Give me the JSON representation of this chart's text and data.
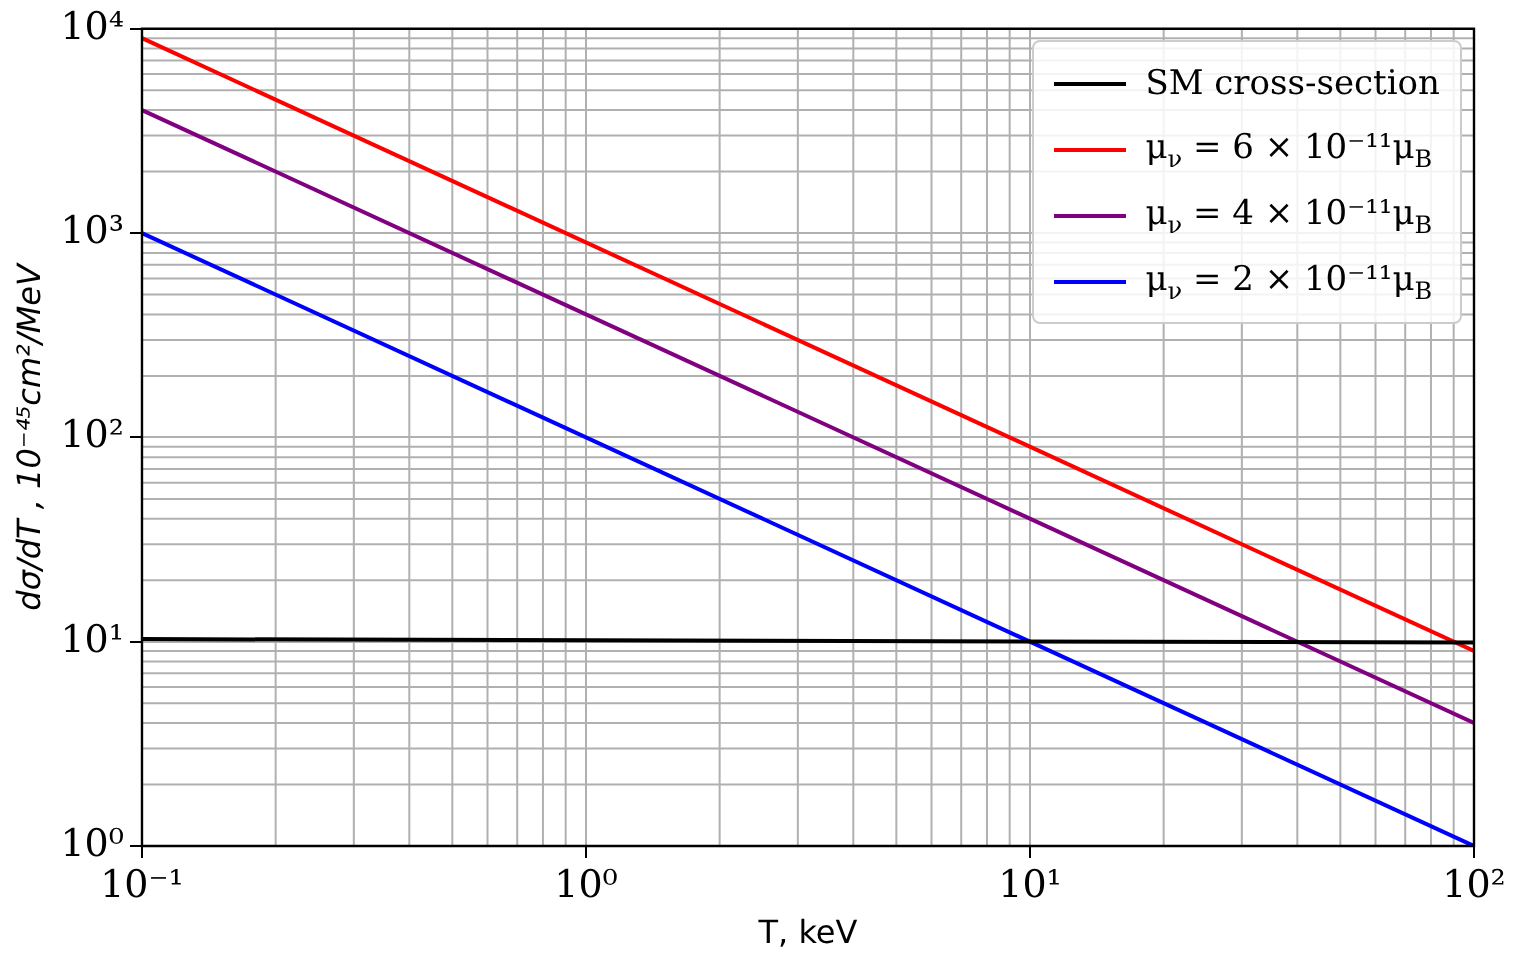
{
  "chart_data": {
    "type": "line",
    "xlabel": "T, keV",
    "ylabel": "dσ/dT , 10⁻⁴⁵cm²/MeV",
    "log": "xy",
    "grid": true,
    "legend": "top right",
    "marker": "none",
    "line_style": "solid",
    "xlim": [
      0.1,
      100
    ],
    "ylim": [
      1,
      10000
    ],
    "xticks": [
      {
        "value": 0.1,
        "label": "10⁻¹"
      },
      {
        "value": 1,
        "label": "10⁰"
      },
      {
        "value": 10,
        "label": "10¹"
      },
      {
        "value": 100,
        "label": "10²"
      }
    ],
    "yticks": [
      {
        "value": 1,
        "label": "10⁰"
      },
      {
        "value": 10,
        "label": "10¹"
      },
      {
        "value": 100,
        "label": "10²"
      },
      {
        "value": 1000,
        "label": "10³"
      },
      {
        "value": 10000,
        "label": "10⁴"
      }
    ],
    "x": [
      0.1,
      100
    ],
    "series": [
      {
        "name": "SM cross-section",
        "color": "#000000",
        "values": [
          10.3,
          9.9
        ]
      },
      {
        "name": "μ$_{ν}$ = 6 × 10⁻¹¹μ$_{B}$",
        "color": "#ff0000",
        "values": [
          9000,
          9
        ]
      },
      {
        "name": "μ$_{ν}$ = 4 × 10⁻¹¹μ$_{B}$",
        "color": "#800080",
        "values": [
          4000,
          4
        ]
      },
      {
        "name": "μ$_{ν}$ = 2 × 10⁻¹¹μ$_{B}$",
        "color": "#0000ff",
        "values": [
          1000,
          1
        ]
      }
    ]
  }
}
